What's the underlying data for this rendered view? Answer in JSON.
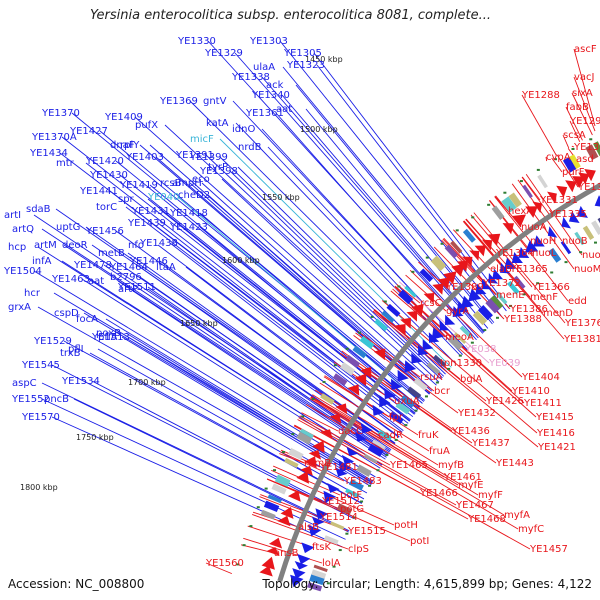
{
  "title": "Yersinia enterocolitica subsp. enterocolitica 8081, complete...",
  "accession": "Accession: NC_008800",
  "summary": "Topology: circular; Length: 4,615,899 bp; Genes: 4,122",
  "colors": {
    "backbone": "#808080",
    "forward": "#e8161b",
    "reverse": "#1a1ee6",
    "tick": "#2e7d32",
    "highlight_reverse": "#3ab5d8",
    "highlight_forward": "#e8a0d0"
  },
  "scale_labels": [
    "1450 kbp",
    "1500 kbp",
    "1550 kbp",
    "1600 kbp",
    "1650 kbp",
    "1700 kbp",
    "1750 kbp",
    "1800 kbp"
  ],
  "forward_labels": [
    "ascF",
    "vacJ",
    "YE1288",
    "sixA",
    "fabB",
    "YE1295",
    "scsA",
    "YE1306",
    "cvpA",
    "asd",
    "purF",
    "YE1322",
    "YE1331",
    "YE1335",
    "hexA",
    "nuoA",
    "nuoH",
    "nuoB",
    "nuoL",
    "YE1364",
    "nuoF",
    "elaB",
    "YE1365",
    "nuoM",
    "YE1372",
    "YE1389",
    "menE",
    "menF",
    "edd",
    "YE1386",
    "YE1366",
    "menD",
    "YE1388",
    "rcsC",
    "YE1376",
    "gyrA",
    "YE1381",
    "meoA",
    "YE038",
    "tpn1330",
    "YE039",
    "rsuA",
    "bglA",
    "YE1404",
    "bcr",
    "YE1410",
    "uxuA",
    "YE1426",
    "YE1411",
    "YE1432",
    "YE1415",
    "fpr",
    "dacC",
    "YE1436",
    "YE1416",
    "cadR",
    "fruK",
    "YE1437",
    "YE1421",
    "fruA",
    "YE1465",
    "myfB",
    "YE1443",
    "YE1461",
    "myfE",
    "rumB",
    "YE1481",
    "YE1483",
    "YE1466",
    "myfF",
    "YE1467",
    "potF",
    "YE1468",
    "myfA",
    "YE1512",
    "potG",
    "YE1514",
    "potH",
    "myfC",
    "YE1515",
    "alsB",
    "clpS",
    "potI",
    "YE1457",
    "ftsK",
    "ansB",
    "lolA",
    "YE1560"
  ],
  "reverse_labels": [
    "YE1330",
    "YE1303",
    "YE1329",
    "YE1305",
    "ulaA",
    "YE1323",
    "YE1338",
    "ack",
    "YE1340",
    "aat",
    "YE1369",
    "gntV",
    "YE1361",
    "katA",
    "idnO",
    "YE1370",
    "YE1409",
    "pufX",
    "dnaF",
    "micF",
    "nrdB",
    "YE1370A",
    "YE1427",
    "rplY",
    "YE1399",
    "YE1391",
    "YE1434",
    "YE1420",
    "YE1403",
    "YE1398",
    "eco",
    "tyrP",
    "mtr",
    "YE1430",
    "ampH",
    "rcsB",
    "YE1419",
    "cheD2",
    "YE1441",
    "spr",
    "YE040",
    "torC",
    "YE1431",
    "YE1418",
    "YE1439",
    "YE1423",
    "sdaB",
    "artI",
    "uptG",
    "artQ",
    "YE1456",
    "nfo",
    "YE1438",
    "deoR",
    "artM",
    "hcp",
    "metB",
    "YE1478",
    "YE1464",
    "YE1446",
    "ltaA",
    "infA",
    "YE1504",
    "YE1463",
    "b2796",
    "aat",
    "YE1511",
    "hcr",
    "artP",
    "grxA",
    "focA",
    "cspD",
    "poxB",
    "pflA",
    "YE1513",
    "YE1529",
    "trxB",
    "pflI",
    "YE1545",
    "YE1534",
    "aspC",
    "pncB",
    "YE1552",
    "YE1570"
  ],
  "reverse_highlighted": [
    "micF",
    "YE040"
  ],
  "forward_highlighted": [
    "YE038",
    "YE039"
  ]
}
